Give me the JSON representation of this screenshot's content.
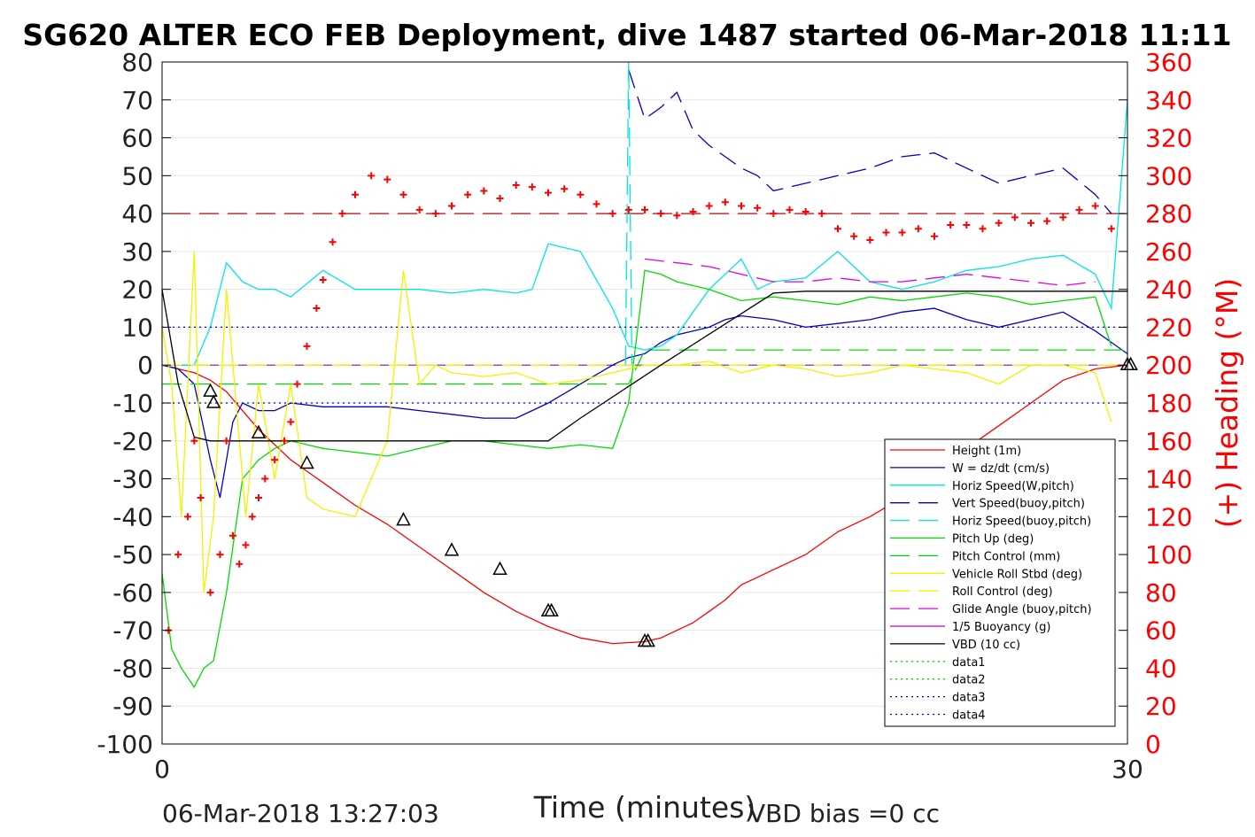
{
  "title": "SG620 ALTER ECO FEB Deployment, dive 1487 started 06-Mar-2018 11:11",
  "footer": {
    "timestamp": "06-Mar-2018 13:27:03",
    "vbd_bias": "VBD bias =0 cc"
  },
  "chart_data": {
    "type": "line",
    "xlabel": "Time (minutes)",
    "ylabel": "",
    "y2label": "(+) Heading (°M)",
    "xlim": [
      0,
      30
    ],
    "ylim": [
      -100,
      80
    ],
    "y2lim": [
      0,
      360
    ],
    "grid": true,
    "legend_position": "bottom-right",
    "x_ticks": [
      "0",
      "30"
    ],
    "y_ticks": [
      "80",
      "70",
      "60",
      "50",
      "40",
      "30",
      "20",
      "10",
      "0",
      "-10",
      "-20",
      "-30",
      "-40",
      "-50",
      "-60",
      "-70",
      "-80",
      "-90",
      "-100"
    ],
    "y2_ticks": [
      "360",
      "340",
      "320",
      "300",
      "280",
      "260",
      "240",
      "220",
      "200",
      "180",
      "160",
      "140",
      "120",
      "100",
      "80",
      "60",
      "40",
      "20",
      "0"
    ],
    "colors": {
      "height": "#ff0000",
      "w": "#0000c8",
      "horiz_w_pitch": "#00e5e5",
      "vert_buoy": "#0000c8",
      "horiz_buoy": "#00e5e5",
      "pitch_up": "#00dd00",
      "pitch_control": "#00dd00",
      "roll": "#f2f200",
      "roll_control": "#f2f200",
      "glide_angle": "#e000e0",
      "buoyancy": "#c000c0",
      "vbd": "#000000",
      "heading": "#ff0000",
      "data1": "#00dd00",
      "data2": "#00dd00",
      "data3": "#0000c8",
      "data4": "#0000c8",
      "ref_line": "#c00000",
      "zero_line": "#8a2be2"
    },
    "series": [
      {
        "name": "Height (1m)",
        "key": "height",
        "style": "solid",
        "x": [
          0.0,
          0.5,
          1.0,
          1.5,
          2.0,
          2.5,
          3.0,
          3.5,
          4.0,
          4.5,
          5.0,
          6.0,
          7.0,
          8.0,
          9.0,
          10.0,
          11.0,
          12.0,
          13.0,
          14.0,
          15.0,
          15.5,
          16.0,
          16.5,
          17.0,
          17.5,
          18.0,
          18.5,
          19.0,
          20.0,
          21.0,
          22.0,
          23.0,
          24.0,
          25.0,
          26.0,
          27.0,
          28.0,
          29.0,
          30.0
        ],
        "values": [
          0,
          -1,
          -2,
          -4,
          -7,
          -12,
          -17,
          -21,
          -25,
          -28,
          -31,
          -37,
          -42,
          -48,
          -54,
          -60,
          -65,
          -69,
          -72,
          -73.5,
          -73,
          -72,
          -70,
          -68,
          -65,
          -62,
          -58,
          -56,
          -54,
          -50,
          -44,
          -40,
          -35,
          -29,
          -22,
          -16,
          -10,
          -4,
          -1,
          0
        ]
      },
      {
        "name": "W = dz/dt (cm/s)",
        "key": "w",
        "style": "solid",
        "x": [
          0.0,
          0.5,
          1.0,
          1.5,
          1.8,
          2.0,
          2.2,
          2.5,
          3.0,
          3.5,
          4.0,
          5.0,
          6.0,
          7.0,
          8.0,
          9.0,
          10.0,
          11.0,
          11.5,
          12.0,
          13.0,
          14.0,
          14.5,
          15.0,
          15.5,
          16.0,
          16.5,
          17.0,
          17.5,
          18.0,
          19.0,
          20.0,
          21.0,
          22.0,
          23.0,
          24.0,
          25.0,
          26.0,
          27.0,
          28.0,
          29.0,
          30.0
        ],
        "values": [
          0,
          -1,
          -5,
          -25,
          -35,
          -25,
          -15,
          -10,
          -12,
          -12,
          -10,
          -11,
          -11,
          -11,
          -12,
          -13,
          -14,
          -14,
          -12,
          -10,
          -5,
          0,
          2,
          3,
          6,
          8,
          9,
          10,
          12,
          13,
          12,
          10,
          11,
          12,
          14,
          15,
          12,
          10,
          12,
          14,
          9,
          3
        ]
      },
      {
        "name": "Horiz Speed(W,pitch)",
        "key": "horiz_w_pitch",
        "style": "solid",
        "x": [
          0.0,
          0.5,
          1.0,
          1.5,
          2.0,
          2.5,
          3.0,
          3.5,
          4.0,
          5.0,
          6.0,
          7.0,
          8.0,
          9.0,
          10.0,
          11.0,
          11.5,
          12.0,
          13.0,
          14.0,
          14.5,
          15.0,
          15.5,
          16.0,
          17.0,
          18.0,
          18.5,
          19.0,
          20.0,
          21.0,
          22.0,
          23.0,
          24.0,
          25.0,
          26.0,
          27.0,
          28.0,
          29.0,
          29.5,
          30.0
        ],
        "values": [
          0,
          0,
          0,
          10,
          27,
          22,
          20,
          20,
          18,
          25,
          20,
          20,
          20,
          19,
          20,
          19,
          20,
          32,
          30,
          15,
          5,
          4,
          5,
          8,
          20,
          28,
          20,
          22,
          23,
          30,
          22,
          20,
          22,
          25,
          26,
          28,
          29,
          24,
          15,
          70
        ]
      },
      {
        "name": "Vert Speed(buoy,pitch)",
        "key": "vert_buoy",
        "style": "dashed",
        "x": [
          14.5,
          15.0,
          15.5,
          16.0,
          16.5,
          17.0,
          18.0,
          18.5,
          19.0,
          20.0,
          21.0,
          22.0,
          23.0,
          24.0,
          25.0,
          26.0,
          27.0,
          28.0,
          29.0,
          29.5
        ],
        "values": [
          78,
          65,
          68,
          72,
          62,
          58,
          52,
          50,
          46,
          48,
          50,
          52,
          55,
          56,
          52,
          48,
          50,
          52,
          45,
          40
        ]
      },
      {
        "name": "Horiz Speed(buoy,pitch)",
        "key": "horiz_buoy",
        "style": "dashed",
        "x": [
          14.4,
          14.5,
          14.6
        ],
        "values": [
          0,
          80,
          0
        ]
      },
      {
        "name": "Pitch Up (deg)",
        "key": "pitch_up",
        "style": "solid",
        "x": [
          0.0,
          0.3,
          0.6,
          1.0,
          1.3,
          1.6,
          2.0,
          2.5,
          3.0,
          3.5,
          4.0,
          5.0,
          6.0,
          7.0,
          8.0,
          9.0,
          10.0,
          11.0,
          12.0,
          13.0,
          14.0,
          14.5,
          15.0,
          15.5,
          16.0,
          17.0,
          18.0,
          19.0,
          20.0,
          21.0,
          22.0,
          23.0,
          24.0,
          25.0,
          26.0,
          27.0,
          28.0,
          29.0,
          29.5
        ],
        "values": [
          -55,
          -75,
          -80,
          -85,
          -80,
          -78,
          -60,
          -30,
          -25,
          -22,
          -20,
          -22,
          -23,
          -24,
          -22,
          -20,
          -20,
          -21,
          -22,
          -21,
          -22,
          -10,
          25,
          24,
          22,
          20,
          17,
          18,
          17,
          16,
          18,
          17,
          18,
          19,
          18,
          16,
          17,
          18,
          5
        ]
      },
      {
        "name": "Pitch Control (mm)",
        "key": "pitch_control",
        "style": "dashed",
        "x": [
          0.0,
          14.5,
          15.0,
          30.0
        ],
        "values": [
          -5,
          -5,
          4,
          4
        ]
      },
      {
        "name": "Vehicle Roll Stbd (deg)",
        "key": "roll",
        "style": "solid",
        "x": [
          0.0,
          0.3,
          0.6,
          1.0,
          1.3,
          1.6,
          2.0,
          2.3,
          2.6,
          3.0,
          3.5,
          4.0,
          4.5,
          5.0,
          6.0,
          7.0,
          7.5,
          8.0,
          8.5,
          9.0,
          10.0,
          11.0,
          12.0,
          13.0,
          14.0,
          15.0,
          16.0,
          17.0,
          18.0,
          19.0,
          20.0,
          21.0,
          22.0,
          23.0,
          24.0,
          25.0,
          26.0,
          27.0,
          28.0,
          29.0,
          29.5
        ],
        "values": [
          10,
          -5,
          -40,
          30,
          -60,
          -40,
          20,
          -10,
          -40,
          -5,
          -30,
          -5,
          -35,
          -38,
          -40,
          -20,
          25,
          -5,
          0,
          -2,
          -3,
          -2,
          -5,
          -4,
          -2,
          0,
          0,
          1,
          -2,
          0,
          -1,
          -3,
          -2,
          0,
          -1,
          -2,
          -5,
          0,
          0,
          -2,
          -15
        ]
      },
      {
        "name": "Roll Control (deg)",
        "key": "roll_control",
        "style": "dashed",
        "x": [
          0.0,
          30.0
        ],
        "values": [
          0,
          0
        ]
      },
      {
        "name": "Glide Angle (buoy,pitch)",
        "key": "glide_angle",
        "style": "dashed",
        "x": [
          15.0,
          16.0,
          17.0,
          18.0,
          19.0,
          20.0,
          21.0,
          22.0,
          23.0,
          24.0,
          25.0,
          26.0,
          27.0,
          28.0,
          29.0
        ],
        "values": [
          28,
          27,
          26,
          24,
          22,
          22,
          23,
          22,
          22,
          23,
          24,
          23,
          22,
          21,
          22
        ]
      },
      {
        "name": "1/5 Buoyancy (g)",
        "key": "buoyancy",
        "style": "solid",
        "x": [],
        "values": []
      },
      {
        "name": "VBD (10 cc)",
        "key": "vbd",
        "style": "solid",
        "x": [
          0.0,
          0.5,
          1.0,
          1.5,
          12.0,
          13.0,
          15.5,
          19.0,
          20.0,
          30.0
        ],
        "values": [
          20,
          -5,
          -19,
          -20,
          -20,
          -14,
          0,
          19,
          19.5,
          19.5
        ]
      },
      {
        "name": "data1",
        "key": "data1",
        "style": "dotted",
        "x": [],
        "values": []
      },
      {
        "name": "data2",
        "key": "data2",
        "style": "dotted",
        "x": [],
        "values": []
      },
      {
        "name": "data3",
        "key": "data3",
        "style": "dotted",
        "x": [
          0.0,
          30.0
        ],
        "values": [
          10,
          10
        ]
      },
      {
        "name": "data4",
        "key": "data4",
        "style": "dotted",
        "x": [
          0.0,
          30.0
        ],
        "values": [
          -10,
          -10
        ]
      }
    ],
    "heading_series": {
      "axis": "right",
      "marker": "+",
      "x": [
        0.2,
        0.5,
        0.8,
        1.0,
        1.2,
        1.5,
        1.8,
        2.0,
        2.2,
        2.4,
        2.6,
        2.8,
        3.0,
        3.2,
        3.5,
        3.8,
        4.0,
        4.2,
        4.5,
        4.8,
        5.0,
        5.3,
        5.6,
        6.0,
        6.5,
        7.0,
        7.5,
        8.0,
        8.5,
        9.0,
        9.5,
        10.0,
        10.5,
        11.0,
        11.5,
        12.0,
        12.5,
        13.0,
        13.5,
        14.0,
        14.5,
        15.0,
        15.5,
        16.0,
        16.5,
        17.0,
        17.5,
        18.0,
        18.5,
        19.0,
        19.5,
        20.0,
        20.5,
        21.0,
        21.5,
        22.0,
        22.5,
        23.0,
        23.5,
        24.0,
        24.5,
        25.0,
        25.5,
        26.0,
        26.5,
        27.0,
        27.5,
        28.0,
        28.5,
        29.0,
        29.5
      ],
      "values": [
        60,
        100,
        120,
        160,
        130,
        80,
        100,
        160,
        110,
        95,
        105,
        120,
        130,
        140,
        150,
        160,
        170,
        190,
        210,
        230,
        245,
        265,
        280,
        290,
        300,
        298,
        290,
        282,
        280,
        284,
        290,
        292,
        288,
        295,
        294,
        291,
        293,
        290,
        285,
        280,
        282,
        282,
        280,
        279,
        281,
        284,
        286,
        284,
        283,
        280,
        282,
        281,
        280,
        272,
        268,
        266,
        270,
        270,
        272,
        268,
        274,
        274,
        272,
        275,
        278,
        275,
        276,
        278,
        282,
        284,
        272
      ]
    },
    "reference_lines": [
      {
        "key": "ref_line",
        "axis": "left",
        "value": 40,
        "style": "dashed"
      },
      {
        "key": "zero_line",
        "axis": "left",
        "value": 0,
        "style": "dashed"
      }
    ],
    "triangle_markers": {
      "x": [
        1.5,
        1.6,
        3.0,
        4.5,
        7.5,
        9.0,
        10.5,
        12.0,
        12.1,
        15.0,
        15.1,
        30.0,
        30.1
      ],
      "values": [
        -7,
        -10,
        -18,
        -26,
        -41,
        -49,
        -54,
        -65,
        -65,
        -73,
        -73,
        0,
        0
      ]
    }
  }
}
